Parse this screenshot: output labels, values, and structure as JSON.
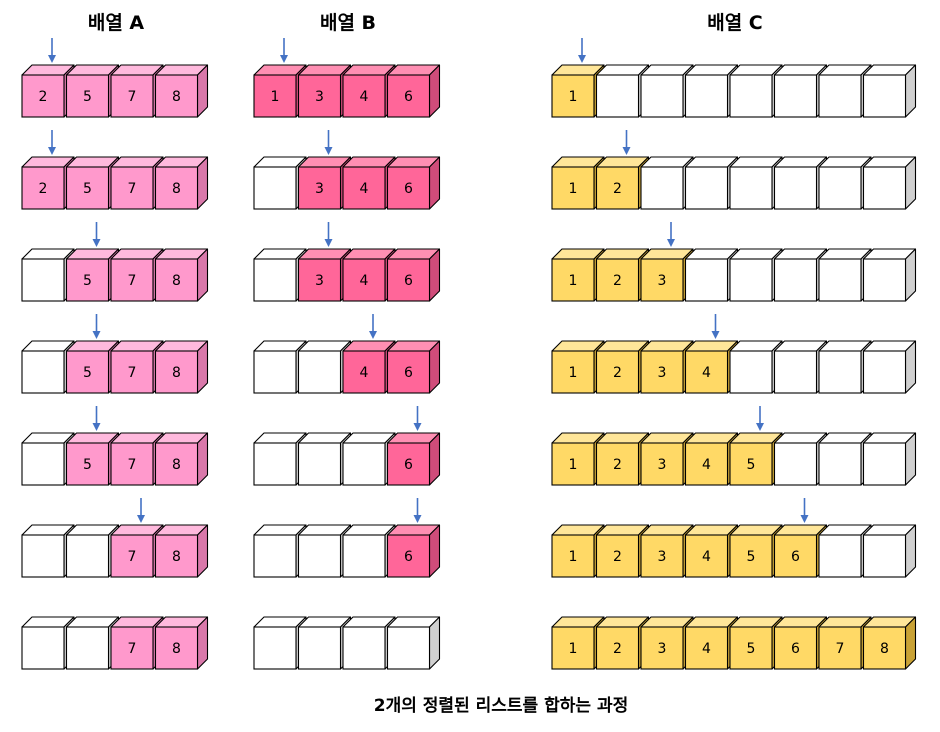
{
  "headers": {
    "a": "배열 A",
    "b": "배열 B",
    "c": "배열 C"
  },
  "caption": "2개의 정렬된 리스트를 합하는 과정",
  "colors": {
    "array_a": {
      "front": "#FF99CC",
      "top": "#FFB9DD",
      "side": "#D978AA"
    },
    "array_b": {
      "front": "#FF6699",
      "top": "#FF8FB3",
      "side": "#D04C7A"
    },
    "array_c": {
      "front": "#FFD966",
      "top": "#FFE699",
      "side": "#C9A235"
    },
    "empty": {
      "front": "#FFFFFF",
      "top": "#FFFFFF",
      "side": "#D0D0D0"
    },
    "arrow": "#4472C4",
    "stroke": "#000000"
  },
  "steps": [
    {
      "a": [
        "2",
        "5",
        "7",
        "8"
      ],
      "a_ptr": 0,
      "b": [
        "1",
        "3",
        "4",
        "6"
      ],
      "b_ptr": 0,
      "c": [
        "1",
        "",
        "",
        "",
        "",
        "",
        "",
        ""
      ],
      "c_ptr": 0
    },
    {
      "a": [
        "2",
        "5",
        "7",
        "8"
      ],
      "a_ptr": 0,
      "b": [
        "",
        "3",
        "4",
        "6"
      ],
      "b_ptr": 1,
      "c": [
        "1",
        "2",
        "",
        "",
        "",
        "",
        "",
        ""
      ],
      "c_ptr": 1
    },
    {
      "a": [
        "",
        "5",
        "7",
        "8"
      ],
      "a_ptr": 1,
      "b": [
        "",
        "3",
        "4",
        "6"
      ],
      "b_ptr": 1,
      "c": [
        "1",
        "2",
        "3",
        "",
        "",
        "",
        "",
        ""
      ],
      "c_ptr": 2
    },
    {
      "a": [
        "",
        "5",
        "7",
        "8"
      ],
      "a_ptr": 1,
      "b": [
        "",
        "",
        "4",
        "6"
      ],
      "b_ptr": 2,
      "c": [
        "1",
        "2",
        "3",
        "4",
        "",
        "",
        "",
        ""
      ],
      "c_ptr": 3
    },
    {
      "a": [
        "",
        "5",
        "7",
        "8"
      ],
      "a_ptr": 1,
      "b": [
        "",
        "",
        "",
        "6"
      ],
      "b_ptr": 3,
      "c": [
        "1",
        "2",
        "3",
        "4",
        "5",
        "",
        "",
        ""
      ],
      "c_ptr": 4
    },
    {
      "a": [
        "",
        "",
        "7",
        "8"
      ],
      "a_ptr": 2,
      "b": [
        "",
        "",
        "",
        "6"
      ],
      "b_ptr": 3,
      "c": [
        "1",
        "2",
        "3",
        "4",
        "5",
        "6",
        "",
        ""
      ],
      "c_ptr": 5
    },
    {
      "a": [
        "",
        "",
        "7",
        "8"
      ],
      "a_ptr": null,
      "b": [
        "",
        "",
        "",
        ""
      ],
      "b_ptr": null,
      "c": [
        "1",
        "2",
        "3",
        "4",
        "5",
        "6",
        "7",
        "8"
      ],
      "c_ptr": null
    }
  ]
}
